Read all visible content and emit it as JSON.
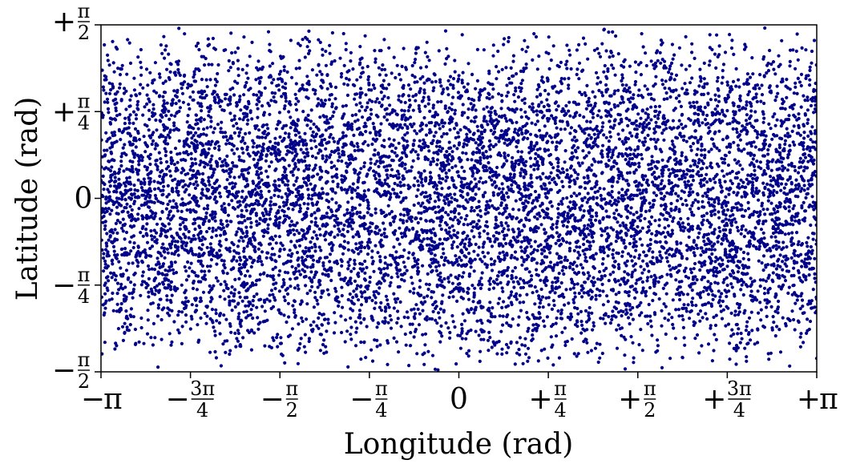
{
  "chart_data": {
    "type": "scatter",
    "title": "",
    "xlabel": "Longitude (rad)",
    "ylabel": "Latitude (rad)",
    "xlim": [
      -3.14159265,
      3.14159265
    ],
    "ylim": [
      -1.57079633,
      1.57079633
    ],
    "grid": false,
    "legend": "none",
    "marker_color": "#00008b",
    "point_count_note": "",
    "x_ticks": [
      {
        "value": -3.14159265,
        "sign": "−",
        "num": "π",
        "den": ""
      },
      {
        "value": -2.35619449,
        "sign": "−",
        "num": "3π",
        "den": "4"
      },
      {
        "value": -1.57079633,
        "sign": "−",
        "num": "π",
        "den": "2"
      },
      {
        "value": -0.78539816,
        "sign": "−",
        "num": "π",
        "den": "4"
      },
      {
        "value": 0,
        "sign": "",
        "num": "0",
        "den": ""
      },
      {
        "value": 0.78539816,
        "sign": "+",
        "num": "π",
        "den": "4"
      },
      {
        "value": 1.57079633,
        "sign": "+",
        "num": "π",
        "den": "2"
      },
      {
        "value": 2.35619449,
        "sign": "+",
        "num": "3π",
        "den": "4"
      },
      {
        "value": 3.14159265,
        "sign": "+",
        "num": "π",
        "den": ""
      }
    ],
    "y_ticks": [
      {
        "value": -1.57079633,
        "sign": "−",
        "num": "π",
        "den": "2"
      },
      {
        "value": -0.78539816,
        "sign": "−",
        "num": "π",
        "den": "4"
      },
      {
        "value": 0,
        "sign": "",
        "num": "0",
        "den": ""
      },
      {
        "value": 0.78539816,
        "sign": "+",
        "num": "π",
        "den": "4"
      },
      {
        "value": 1.57079633,
        "sign": "+",
        "num": "π",
        "den": "2"
      }
    ]
  }
}
